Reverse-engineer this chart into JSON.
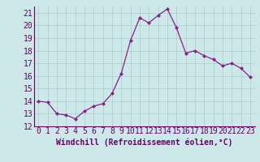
{
  "x": [
    0,
    1,
    2,
    3,
    4,
    5,
    6,
    7,
    8,
    9,
    10,
    11,
    12,
    13,
    14,
    15,
    16,
    17,
    18,
    19,
    20,
    21,
    22,
    23
  ],
  "y": [
    14.0,
    13.9,
    13.0,
    12.9,
    12.6,
    13.2,
    13.6,
    13.8,
    14.6,
    16.2,
    18.8,
    20.6,
    20.2,
    20.8,
    21.3,
    19.8,
    17.8,
    18.0,
    17.6,
    17.3,
    16.8,
    17.0,
    16.6,
    15.9
  ],
  "line_color": "#882288",
  "marker": "D",
  "marker_size": 2,
  "bg_color": "#cce8e8",
  "grid_color": "#aacccc",
  "xlabel": "Windchill (Refroidissement éolien,°C)",
  "xlabel_fontsize": 7,
  "tick_fontsize": 7,
  "ylim": [
    12,
    21.5
  ],
  "yticks": [
    12,
    13,
    14,
    15,
    16,
    17,
    18,
    19,
    20,
    21
  ],
  "xticks": [
    0,
    1,
    2,
    3,
    4,
    5,
    6,
    7,
    8,
    9,
    10,
    11,
    12,
    13,
    14,
    15,
    16,
    17,
    18,
    19,
    20,
    21,
    22,
    23
  ],
  "tick_color": "#660066",
  "label_color": "#660066"
}
